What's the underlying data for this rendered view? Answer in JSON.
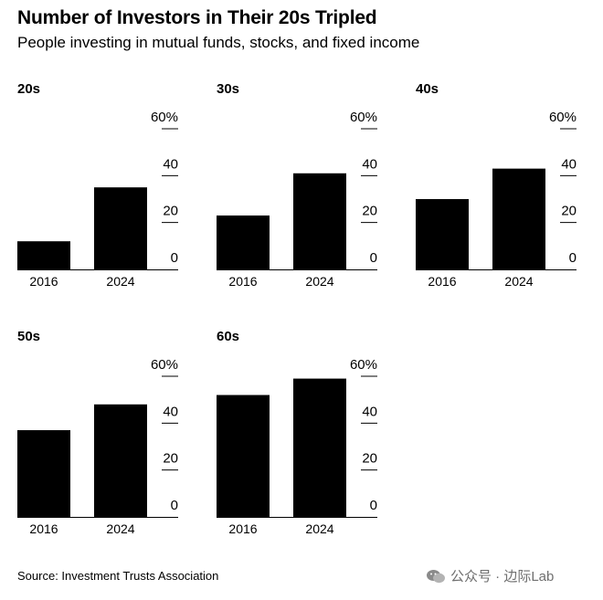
{
  "title": "Number of Investors in Their 20s Tripled",
  "subtitle": "People investing in mutual funds, stocks, and fixed income",
  "source": "Source: Investment Trusts Association",
  "watermark": "公众号 · 边际Lab",
  "colors": {
    "bar": "#000000",
    "text": "#000000",
    "watermark": "#6f6f6f"
  },
  "chart_data": [
    {
      "type": "bar",
      "title": "20s",
      "categories": [
        "2016",
        "2024"
      ],
      "values": [
        12,
        35
      ],
      "ylim": [
        0,
        60
      ],
      "yticks": [
        "0",
        "20",
        "40",
        "60%"
      ]
    },
    {
      "type": "bar",
      "title": "30s",
      "categories": [
        "2016",
        "2024"
      ],
      "values": [
        23,
        41
      ],
      "ylim": [
        0,
        60
      ],
      "yticks": [
        "0",
        "20",
        "40",
        "60%"
      ]
    },
    {
      "type": "bar",
      "title": "40s",
      "categories": [
        "2016",
        "2024"
      ],
      "values": [
        30,
        43
      ],
      "ylim": [
        0,
        60
      ],
      "yticks": [
        "0",
        "20",
        "40",
        "60%"
      ]
    },
    {
      "type": "bar",
      "title": "50s",
      "categories": [
        "2016",
        "2024"
      ],
      "values": [
        37,
        48
      ],
      "ylim": [
        0,
        60
      ],
      "yticks": [
        "0",
        "20",
        "40",
        "60%"
      ]
    },
    {
      "type": "bar",
      "title": "60s",
      "categories": [
        "2016",
        "2024"
      ],
      "values": [
        52,
        59
      ],
      "ylim": [
        0,
        60
      ],
      "yticks": [
        "0",
        "20",
        "40",
        "60%"
      ]
    }
  ]
}
